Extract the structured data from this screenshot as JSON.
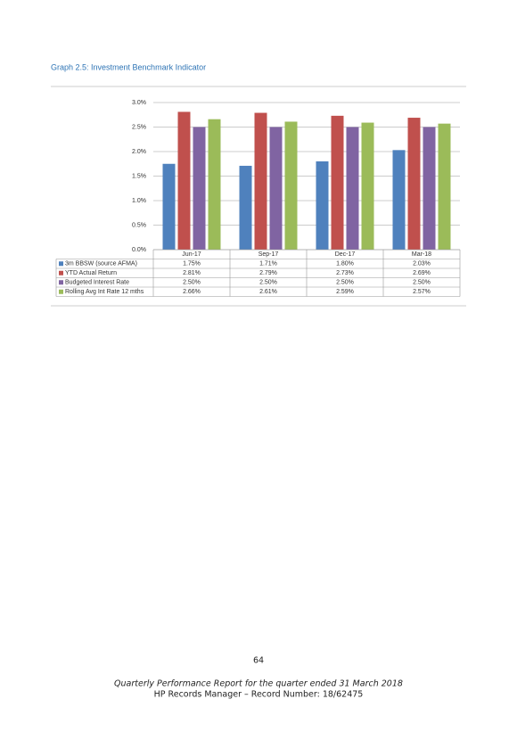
{
  "heading": "Graph 2.5:  Investment Benchmark Indicator",
  "chart_data": {
    "type": "bar",
    "categories": [
      "Jun-17",
      "Sep-17",
      "Dec-17",
      "Mar-18"
    ],
    "series": [
      {
        "name": "3m BBSW (source AFMA)",
        "color": "#4f81bd",
        "values": [
          1.75,
          1.71,
          1.8,
          2.03
        ],
        "value_labels": [
          "1.75%",
          "1.71%",
          "1.80%",
          "2.03%"
        ]
      },
      {
        "name": "YTD Actual Return",
        "color": "#c0504d",
        "values": [
          2.81,
          2.79,
          2.73,
          2.69
        ],
        "value_labels": [
          "2.81%",
          "2.79%",
          "2.73%",
          "2.69%"
        ]
      },
      {
        "name": "Budgeted Interest Rate",
        "color": "#8064a2",
        "values": [
          2.5,
          2.5,
          2.5,
          2.5
        ],
        "value_labels": [
          "2.50%",
          "2.50%",
          "2.50%",
          "2.50%"
        ]
      },
      {
        "name": "Rolling Avg Int Rate 12 mths",
        "color": "#9bbb59",
        "values": [
          2.66,
          2.61,
          2.59,
          2.57
        ],
        "value_labels": [
          "2.66%",
          "2.61%",
          "2.59%",
          "2.57%"
        ]
      }
    ],
    "ylim": [
      0,
      3
    ],
    "yticks": [
      {
        "value": 0,
        "label": "0.0%"
      },
      {
        "value": 0.5,
        "label": "0.5%"
      },
      {
        "value": 1,
        "label": "1.0%"
      },
      {
        "value": 1.5,
        "label": "1.5%"
      },
      {
        "value": 2,
        "label": "2.0%"
      },
      {
        "value": 2.5,
        "label": "2.5%"
      },
      {
        "value": 3,
        "label": "3.0%"
      }
    ],
    "grid": true
  },
  "page_number": "64",
  "footer": [
    "Quarterly Performance Report for the quarter ended 31 March 2018",
    "HP Records Manager – Record Number: 18/62475"
  ]
}
